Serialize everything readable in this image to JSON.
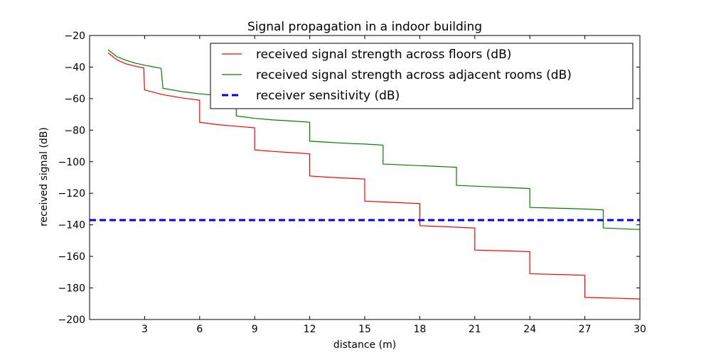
{
  "chart_data": {
    "type": "line",
    "title": "Signal propagation in a indoor building",
    "xlabel": "distance (m)",
    "ylabel": "received signal (dB)",
    "xlim": [
      0,
      30
    ],
    "ylim": [
      -200,
      -20
    ],
    "xticks": [
      3,
      6,
      9,
      12,
      15,
      18,
      21,
      24,
      27,
      30
    ],
    "yticks": [
      -20,
      -40,
      -60,
      -80,
      -100,
      -120,
      -140,
      -160,
      -180,
      -200
    ],
    "xtick_labels": [
      "3",
      "6",
      "9",
      "12",
      "15",
      "18",
      "21",
      "24",
      "27",
      "30"
    ],
    "ytick_labels": [
      "−20",
      "−40",
      "−60",
      "−80",
      "−100",
      "−120",
      "−140",
      "−160",
      "−180",
      "−200"
    ],
    "grid": false,
    "legend_position": "top-right",
    "series": [
      {
        "name": "received signal strength across floors (dB)",
        "color": "#ff0000",
        "style": "solid",
        "x": [
          1.0,
          1.5,
          2.0,
          2.5,
          2.95,
          3.0,
          4.0,
          5.0,
          6.0,
          6.0,
          7.0,
          8.0,
          9.0,
          9.0,
          10.0,
          11.0,
          12.0,
          12.0,
          13.0,
          14.0,
          15.0,
          15.0,
          16.0,
          17.0,
          18.0,
          18.0,
          19.0,
          20.0,
          21.0,
          21.0,
          22.0,
          23.0,
          24.0,
          24.0,
          25.0,
          26.0,
          27.0,
          27.0,
          28.0,
          29.0,
          30.0
        ],
        "y": [
          -31,
          -35.5,
          -38,
          -39.5,
          -40.5,
          -54.5,
          -57.5,
          -59.5,
          -61,
          -75,
          -76.5,
          -77.5,
          -78.5,
          -92.5,
          -93.5,
          -94.2,
          -95,
          -109,
          -109.8,
          -110.4,
          -111,
          -125,
          -125.5,
          -126,
          -126.5,
          -140.5,
          -141,
          -141.5,
          -142,
          -156,
          -156.3,
          -156.6,
          -157,
          -171,
          -171.3,
          -171.6,
          -172,
          -186,
          -186.3,
          -186.6,
          -187
        ]
      },
      {
        "name": "received signal strength across adjacent rooms (dB)",
        "color": "#008000",
        "style": "solid",
        "x": [
          1.0,
          1.5,
          2.0,
          2.5,
          3.0,
          3.5,
          3.9,
          4.0,
          5.0,
          6.0,
          7.0,
          8.0,
          8.0,
          9.0,
          10.0,
          11.0,
          12.0,
          12.0,
          13.0,
          14.0,
          15.0,
          16.0,
          16.0,
          17.0,
          18.0,
          19.0,
          20.0,
          20.0,
          21.0,
          22.0,
          23.0,
          24.0,
          24.0,
          25.0,
          26.0,
          27.0,
          28.0,
          28.0,
          29.0,
          30.0
        ],
        "y": [
          -29,
          -33.5,
          -35.8,
          -37.5,
          -38.8,
          -40,
          -40.8,
          -53.5,
          -55.5,
          -57,
          -58,
          -59,
          -71,
          -72.5,
          -73.5,
          -74.2,
          -75,
          -87,
          -87.7,
          -88.3,
          -88.8,
          -89.5,
          -101.5,
          -102,
          -102.5,
          -103,
          -103.5,
          -115,
          -115.5,
          -116,
          -116.5,
          -117,
          -129,
          -129.3,
          -129.6,
          -130,
          -130.5,
          -142,
          -142.5,
          -143
        ]
      },
      {
        "name": "receiver sensitivity (dB)",
        "color": "#0000ff",
        "style": "dashed",
        "x": [
          0,
          30
        ],
        "y": [
          -137,
          -137
        ]
      }
    ]
  }
}
